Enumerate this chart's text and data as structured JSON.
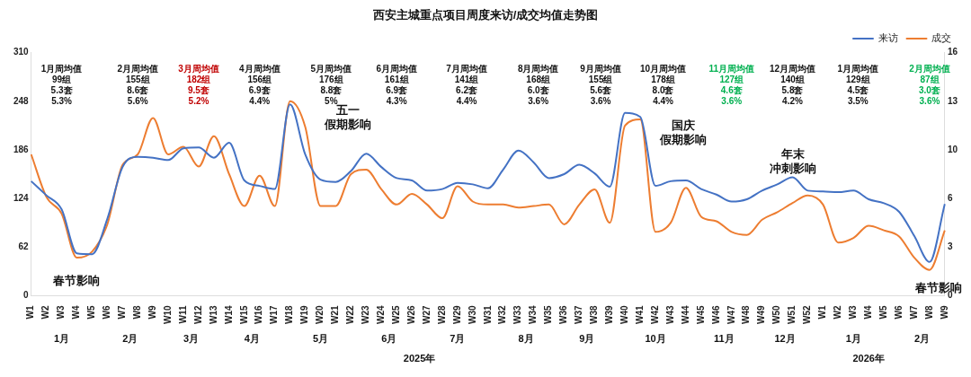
{
  "chart_data": {
    "type": "line",
    "title": "西安主城重点项目周度来访/成交均值走势图",
    "categories": [
      "W1",
      "W2",
      "W3",
      "W4",
      "W5",
      "W6",
      "W7",
      "W8",
      "W9",
      "W10",
      "W11",
      "W12",
      "W13",
      "W14",
      "W15",
      "W16",
      "W17",
      "W18",
      "W19",
      "W20",
      "W21",
      "W22",
      "W23",
      "W24",
      "W25",
      "W26",
      "W27",
      "W28",
      "W29",
      "W30",
      "W31",
      "W32",
      "W33",
      "W34",
      "W35",
      "W36",
      "W37",
      "W38",
      "W39",
      "W40",
      "W41",
      "W42",
      "W43",
      "W44",
      "W45",
      "W46",
      "W47",
      "W48",
      "W49",
      "W50",
      "W51",
      "W52",
      "W1",
      "W2",
      "W3",
      "W4",
      "W5",
      "W6",
      "W7",
      "W8",
      "W9"
    ],
    "series": [
      {
        "name": "来访",
        "color": "#4472c4",
        "values": [
          146,
          128,
          110,
          54,
          53,
          98,
          164,
          177,
          176,
          173,
          188,
          189,
          176,
          195,
          147,
          140,
          136,
          244,
          180,
          148,
          145,
          159,
          181,
          164,
          150,
          147,
          134,
          136,
          144,
          142,
          137,
          161,
          185,
          170,
          150,
          155,
          167,
          156,
          139,
          233,
          228,
          140,
          146,
          147,
          136,
          129,
          120,
          123,
          134,
          142,
          151,
          134,
          133,
          132,
          134,
          123,
          118,
          107,
          76,
          43,
          117
        ]
      },
      {
        "name": "成交",
        "color": "#ed7d31",
        "axis": "y2",
        "values": [
          9.3,
          6.5,
          5.4,
          2.5,
          2.9,
          4.7,
          8.6,
          9.3,
          11.7,
          9.3,
          9.8,
          8.5,
          10.5,
          8.0,
          5.9,
          7.9,
          5.9,
          12.8,
          11.1,
          5.9,
          5.9,
          8.0,
          8.3,
          7.0,
          6.0,
          6.7,
          6.0,
          5.1,
          7.2,
          6.2,
          6.0,
          6.0,
          5.8,
          5.9,
          6.0,
          4.7,
          6.0,
          7.0,
          4.8,
          11.2,
          11.6,
          4.2,
          4.8,
          7.1,
          5.2,
          4.9,
          4.2,
          4.0,
          5.0,
          5.5,
          6.1,
          6.6,
          6.0,
          3.5,
          3.8,
          4.6,
          4.3,
          3.9,
          2.5,
          1.7,
          4.3
        ]
      }
    ],
    "ylim": [
      0,
      310
    ],
    "yticks": [
      0,
      62,
      124,
      186,
      248,
      310
    ],
    "y2lim": [
      0,
      16
    ],
    "y2ticks": [
      0,
      {
        "value": 3.2,
        "label": "3"
      },
      {
        "value": 6.4,
        "label": "6"
      },
      {
        "value": 9.6,
        "label": "10"
      },
      {
        "value": 12.8,
        "label": "13"
      },
      16
    ],
    "grid": false,
    "legend": "top right",
    "marker": "none",
    "line_style": "solid",
    "annotations": [
      "1月周均值\n99组\n5.3套\n5.3%",
      "1月",
      "春节影响",
      "2月",
      "2月周均值\n155组\n8.6套\n5.6%",
      "3月",
      "3月周均值\n182组\n9.5套\n5.2%",
      "4月",
      "4月周均值\n156组\n6.9套\n4.4%",
      "五一假期影响",
      "5月",
      "5月周均值\n176组\n8.8套\n5%",
      "6月",
      "6月周均值\n161组\n6.9套\n4.3%",
      "2025年",
      "7月",
      "7月周均值\n141组\n6.2套\n4.4%",
      "8月",
      "8月周均值\n168组\n6.0套\n3.6%",
      "9月",
      "9月周均值\n155组\n5.6套\n3.6%",
      "国庆假期影响",
      "10月",
      "10月周均值\n178组\n8.0套\n4.4%",
      "11月",
      "11月周均值\n127组\n4.6套\n3.6%",
      "12月",
      "12月周均值\n140组\n5.8套\n4.2%",
      "年末冲刺影响",
      "1月",
      "1月周均值\n129组\n4.5套\n3.5%",
      "2026年",
      "2月",
      "2月周均值\n87组\n3.0套\n3.6%",
      "春节影响"
    ]
  }
}
